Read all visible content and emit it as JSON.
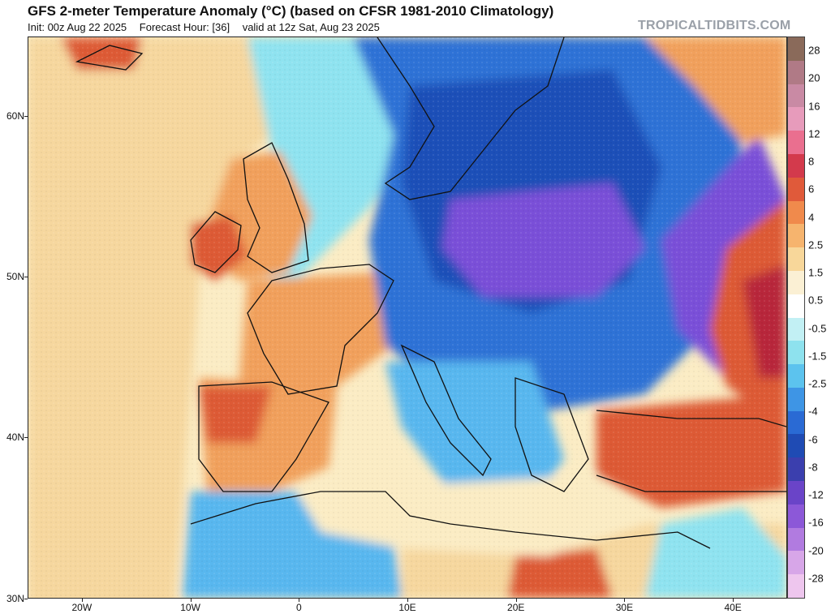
{
  "header": {
    "title": "GFS 2-meter Temperature Anomaly (°C) (based on CFSR 1981-2010 Climatology)",
    "init": "Init: 00z Aug 22 2025",
    "forecast_hour": "Forecast Hour: [36]",
    "valid": "valid at 12z Sat, Aug 23 2025",
    "brand": "TROPICALTIDBITS.COM"
  },
  "map": {
    "lat_labels": [
      {
        "text": "60N",
        "lat": 60
      },
      {
        "text": "50N",
        "lat": 50
      },
      {
        "text": "40N",
        "lat": 40
      },
      {
        "text": "30N",
        "lat": 30
      }
    ],
    "lon_labels": [
      {
        "text": "20W",
        "lon": -20
      },
      {
        "text": "10W",
        "lon": -10
      },
      {
        "text": "0",
        "lon": 0
      },
      {
        "text": "10E",
        "lon": 10
      },
      {
        "text": "20E",
        "lon": 20
      },
      {
        "text": "30E",
        "lon": 30
      },
      {
        "text": "40E",
        "lon": 40
      }
    ],
    "colors": {
      "ocean_warm": "#f6d79e",
      "ocean_neutral": "#fbecc4",
      "cool_light": "#8fe3f0",
      "cool_mid": "#59b7ef",
      "cold": "#2f72d6",
      "very_cold": "#1f4fb8",
      "coldest": "#7a4fd8",
      "warm": "#f1a05b",
      "hot": "#dd5a36",
      "very_hot": "#b8283a",
      "coast": "#111111"
    }
  },
  "colorbar": {
    "labels": [
      "28",
      "20",
      "16",
      "12",
      "8",
      "6",
      "4",
      "2.5",
      "1.5",
      "0.5",
      "-0.5",
      "-1.5",
      "-2.5",
      "-4",
      "-6",
      "-8",
      "-12",
      "-16",
      "-20",
      "-28"
    ],
    "segment_colors": [
      "#8a6a5a",
      "#b07a86",
      "#c98aa4",
      "#e79bbb",
      "#ea6f8f",
      "#d33a4c",
      "#e05a3a",
      "#f08a4c",
      "#f6b46e",
      "#f8d79a",
      "#fbf0d4",
      "#ffffff",
      "#c2f0f4",
      "#8ee2ee",
      "#5cc3ee",
      "#3e95e5",
      "#2a6ad4",
      "#1f4bb4",
      "#3b3fae",
      "#6a44c8",
      "#8c58d8",
      "#b17be0",
      "#d7a6e8",
      "#eec6ee"
    ]
  }
}
